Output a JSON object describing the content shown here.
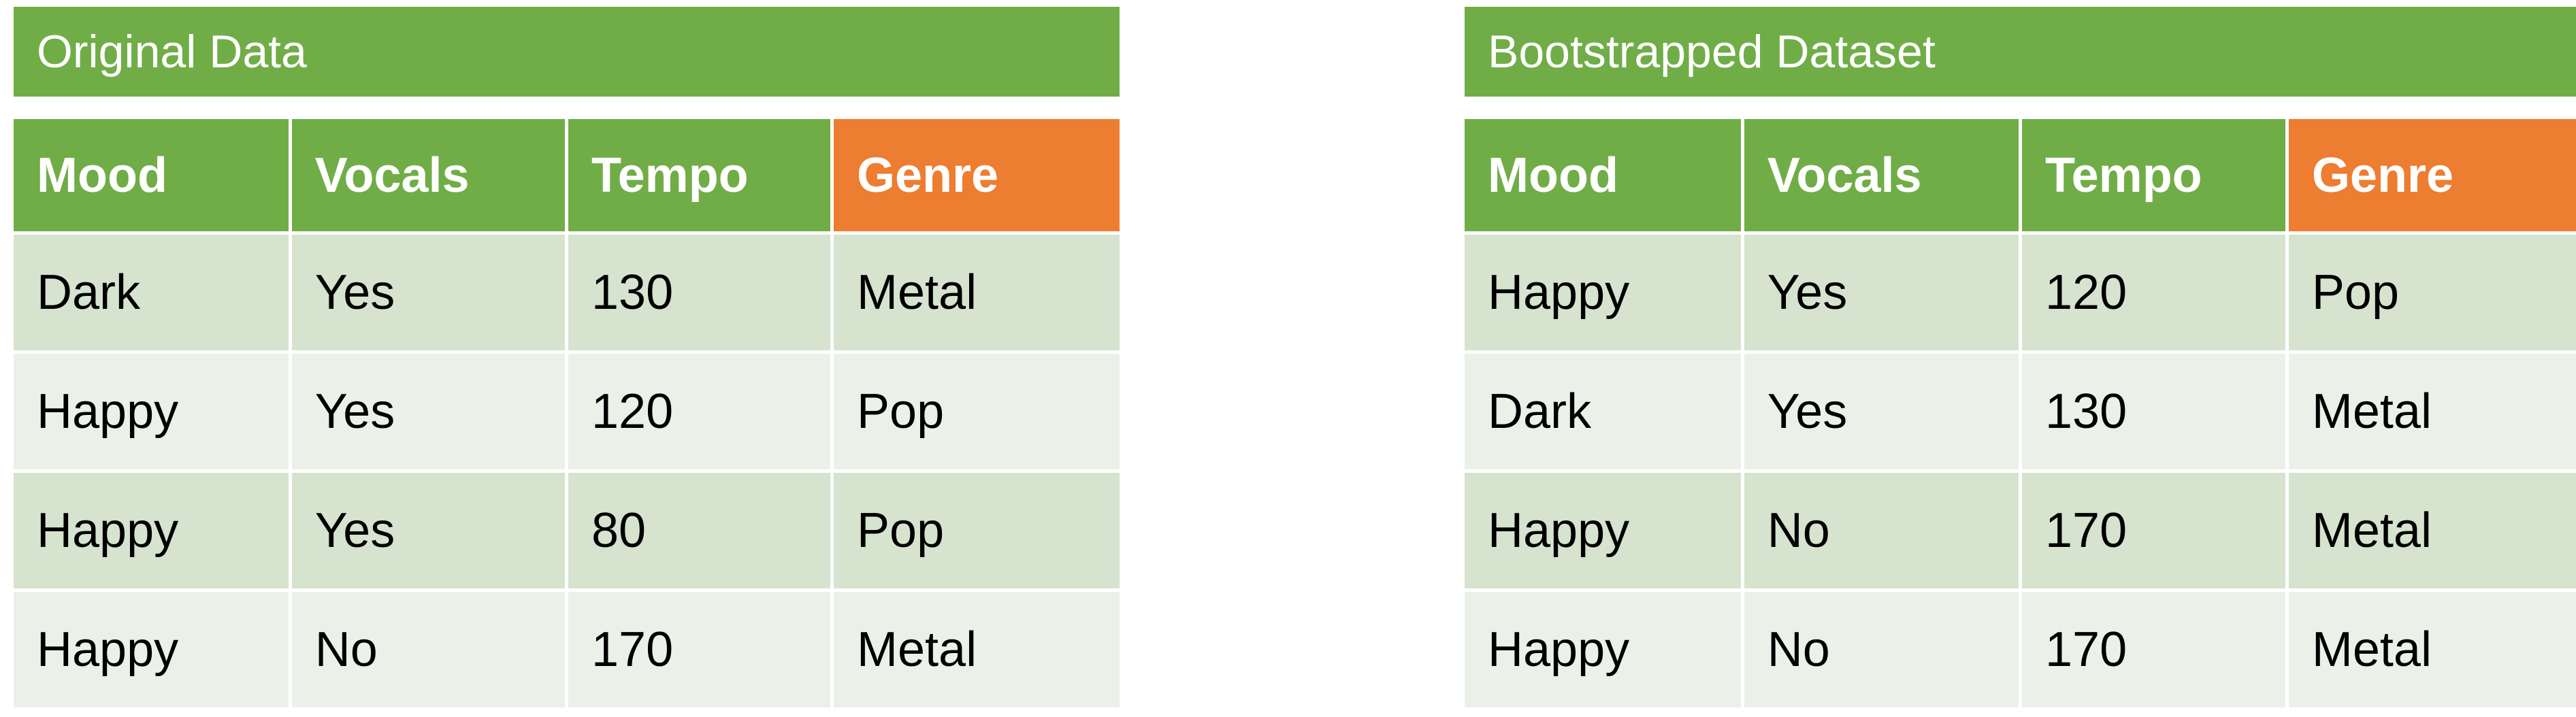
{
  "left": {
    "title": "Original Data",
    "columns": [
      "Mood",
      "Vocals",
      "Tempo",
      "Genre"
    ],
    "rows": [
      [
        "Dark",
        "Yes",
        "130",
        "Metal"
      ],
      [
        "Happy",
        "Yes",
        "120",
        "Pop"
      ],
      [
        "Happy",
        "Yes",
        "80",
        "Pop"
      ],
      [
        "Happy",
        "No",
        "170",
        "Metal"
      ]
    ]
  },
  "right": {
    "title": "Bootstrapped Dataset",
    "columns": [
      "Mood",
      "Vocals",
      "Tempo",
      "Genre"
    ],
    "rows": [
      [
        "Happy",
        "Yes",
        "120",
        "Pop"
      ],
      [
        "Dark",
        "Yes",
        "130",
        "Metal"
      ],
      [
        "Happy",
        "No",
        "170",
        "Metal"
      ],
      [
        "Happy",
        "No",
        "170",
        "Metal"
      ]
    ]
  },
  "colors": {
    "header_green": "#70ad47",
    "target_orange": "#ed7d31",
    "row_dark": "#d5e3cf",
    "row_light": "#ebf1e9"
  }
}
